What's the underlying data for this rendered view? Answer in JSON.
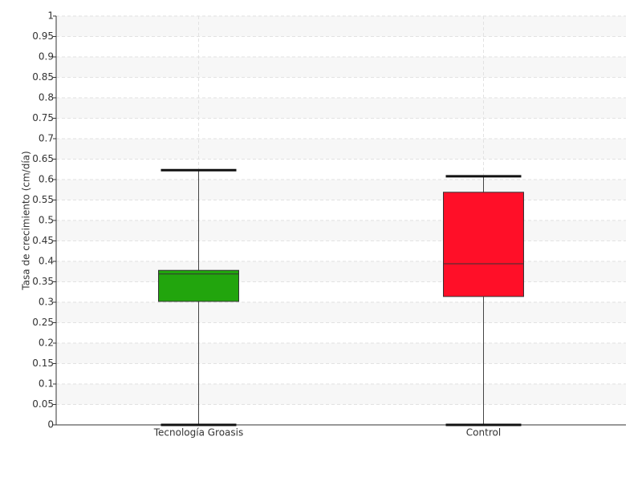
{
  "chart_data": {
    "type": "box",
    "y_label": "Tasa de crecimiento (cm/día)",
    "categories": [
      "Tecnología Groasis",
      "Control"
    ],
    "boxes": [
      {
        "color": "#22a50d",
        "min": 0,
        "q1": 0.302,
        "median": 0.369,
        "q3": 0.378,
        "max": 0.623
      },
      {
        "color": "#ff0f28",
        "min": 0,
        "q1": 0.314,
        "median": 0.394,
        "q3": 0.569,
        "max": 0.608
      }
    ],
    "ylim": [
      0,
      1
    ],
    "yticks": [
      0,
      0.05,
      0.1,
      0.15,
      0.2,
      0.25,
      0.3,
      0.35,
      0.4,
      0.45,
      0.5,
      0.55,
      0.6,
      0.65,
      0.7,
      0.75,
      0.8,
      0.85,
      0.9,
      0.95,
      1
    ],
    "grid": true
  }
}
